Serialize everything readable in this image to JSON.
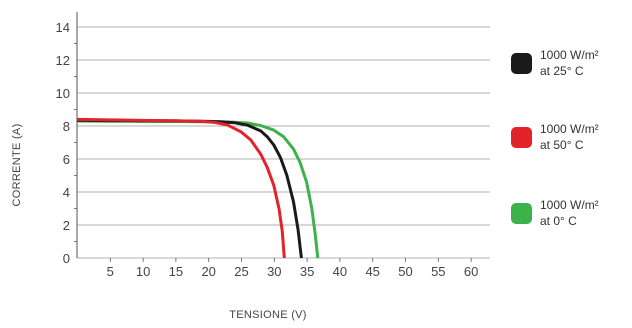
{
  "chart_data": {
    "type": "line",
    "title": "",
    "xlabel": "TENSIONE (V)",
    "ylabel": "CORRENTE (A)",
    "xlim": [
      0,
      62
    ],
    "ylim": [
      0,
      15
    ],
    "x_ticks": [
      5,
      10,
      15,
      20,
      25,
      30,
      35,
      40,
      45,
      50,
      55,
      60
    ],
    "y_ticks": [
      0,
      2,
      4,
      6,
      8,
      10,
      12,
      14
    ],
    "grid": "horizontal",
    "legend_position": "right",
    "series": [
      {
        "name_line1": "1000 W/m²",
        "name_line2": "at 25° C",
        "color": "#1a1a1a",
        "points": [
          [
            0,
            8.35
          ],
          [
            5,
            8.33
          ],
          [
            10,
            8.32
          ],
          [
            15,
            8.31
          ],
          [
            20,
            8.28
          ],
          [
            22,
            8.26
          ],
          [
            24,
            8.2
          ],
          [
            26,
            8.05
          ],
          [
            28,
            7.7
          ],
          [
            29,
            7.35
          ],
          [
            30,
            6.85
          ],
          [
            31,
            6.1
          ],
          [
            32,
            5.0
          ],
          [
            33,
            3.4
          ],
          [
            33.7,
            1.7
          ],
          [
            34.2,
            0
          ]
        ]
      },
      {
        "name_line1": "1000 W/m²",
        "name_line2": "at 50° C",
        "color": "#e2232a",
        "points": [
          [
            0,
            8.4
          ],
          [
            5,
            8.37
          ],
          [
            10,
            8.34
          ],
          [
            15,
            8.32
          ],
          [
            19,
            8.28
          ],
          [
            21,
            8.22
          ],
          [
            23,
            8.05
          ],
          [
            25,
            7.65
          ],
          [
            26.5,
            7.15
          ],
          [
            28,
            6.3
          ],
          [
            29,
            5.5
          ],
          [
            30,
            4.4
          ],
          [
            30.8,
            3.0
          ],
          [
            31.3,
            1.6
          ],
          [
            31.6,
            0
          ]
        ]
      },
      {
        "name_line1": "1000 W/m²",
        "name_line2": "at 0° C",
        "color": "#3cb34a",
        "points": [
          [
            0,
            8.3
          ],
          [
            5,
            8.29
          ],
          [
            10,
            8.28
          ],
          [
            15,
            8.27
          ],
          [
            20,
            8.26
          ],
          [
            24,
            8.23
          ],
          [
            26,
            8.18
          ],
          [
            28,
            8.03
          ],
          [
            30,
            7.75
          ],
          [
            31.5,
            7.35
          ],
          [
            33,
            6.6
          ],
          [
            34,
            5.8
          ],
          [
            35,
            4.6
          ],
          [
            35.8,
            3.0
          ],
          [
            36.3,
            1.5
          ],
          [
            36.7,
            0
          ]
        ]
      }
    ]
  }
}
